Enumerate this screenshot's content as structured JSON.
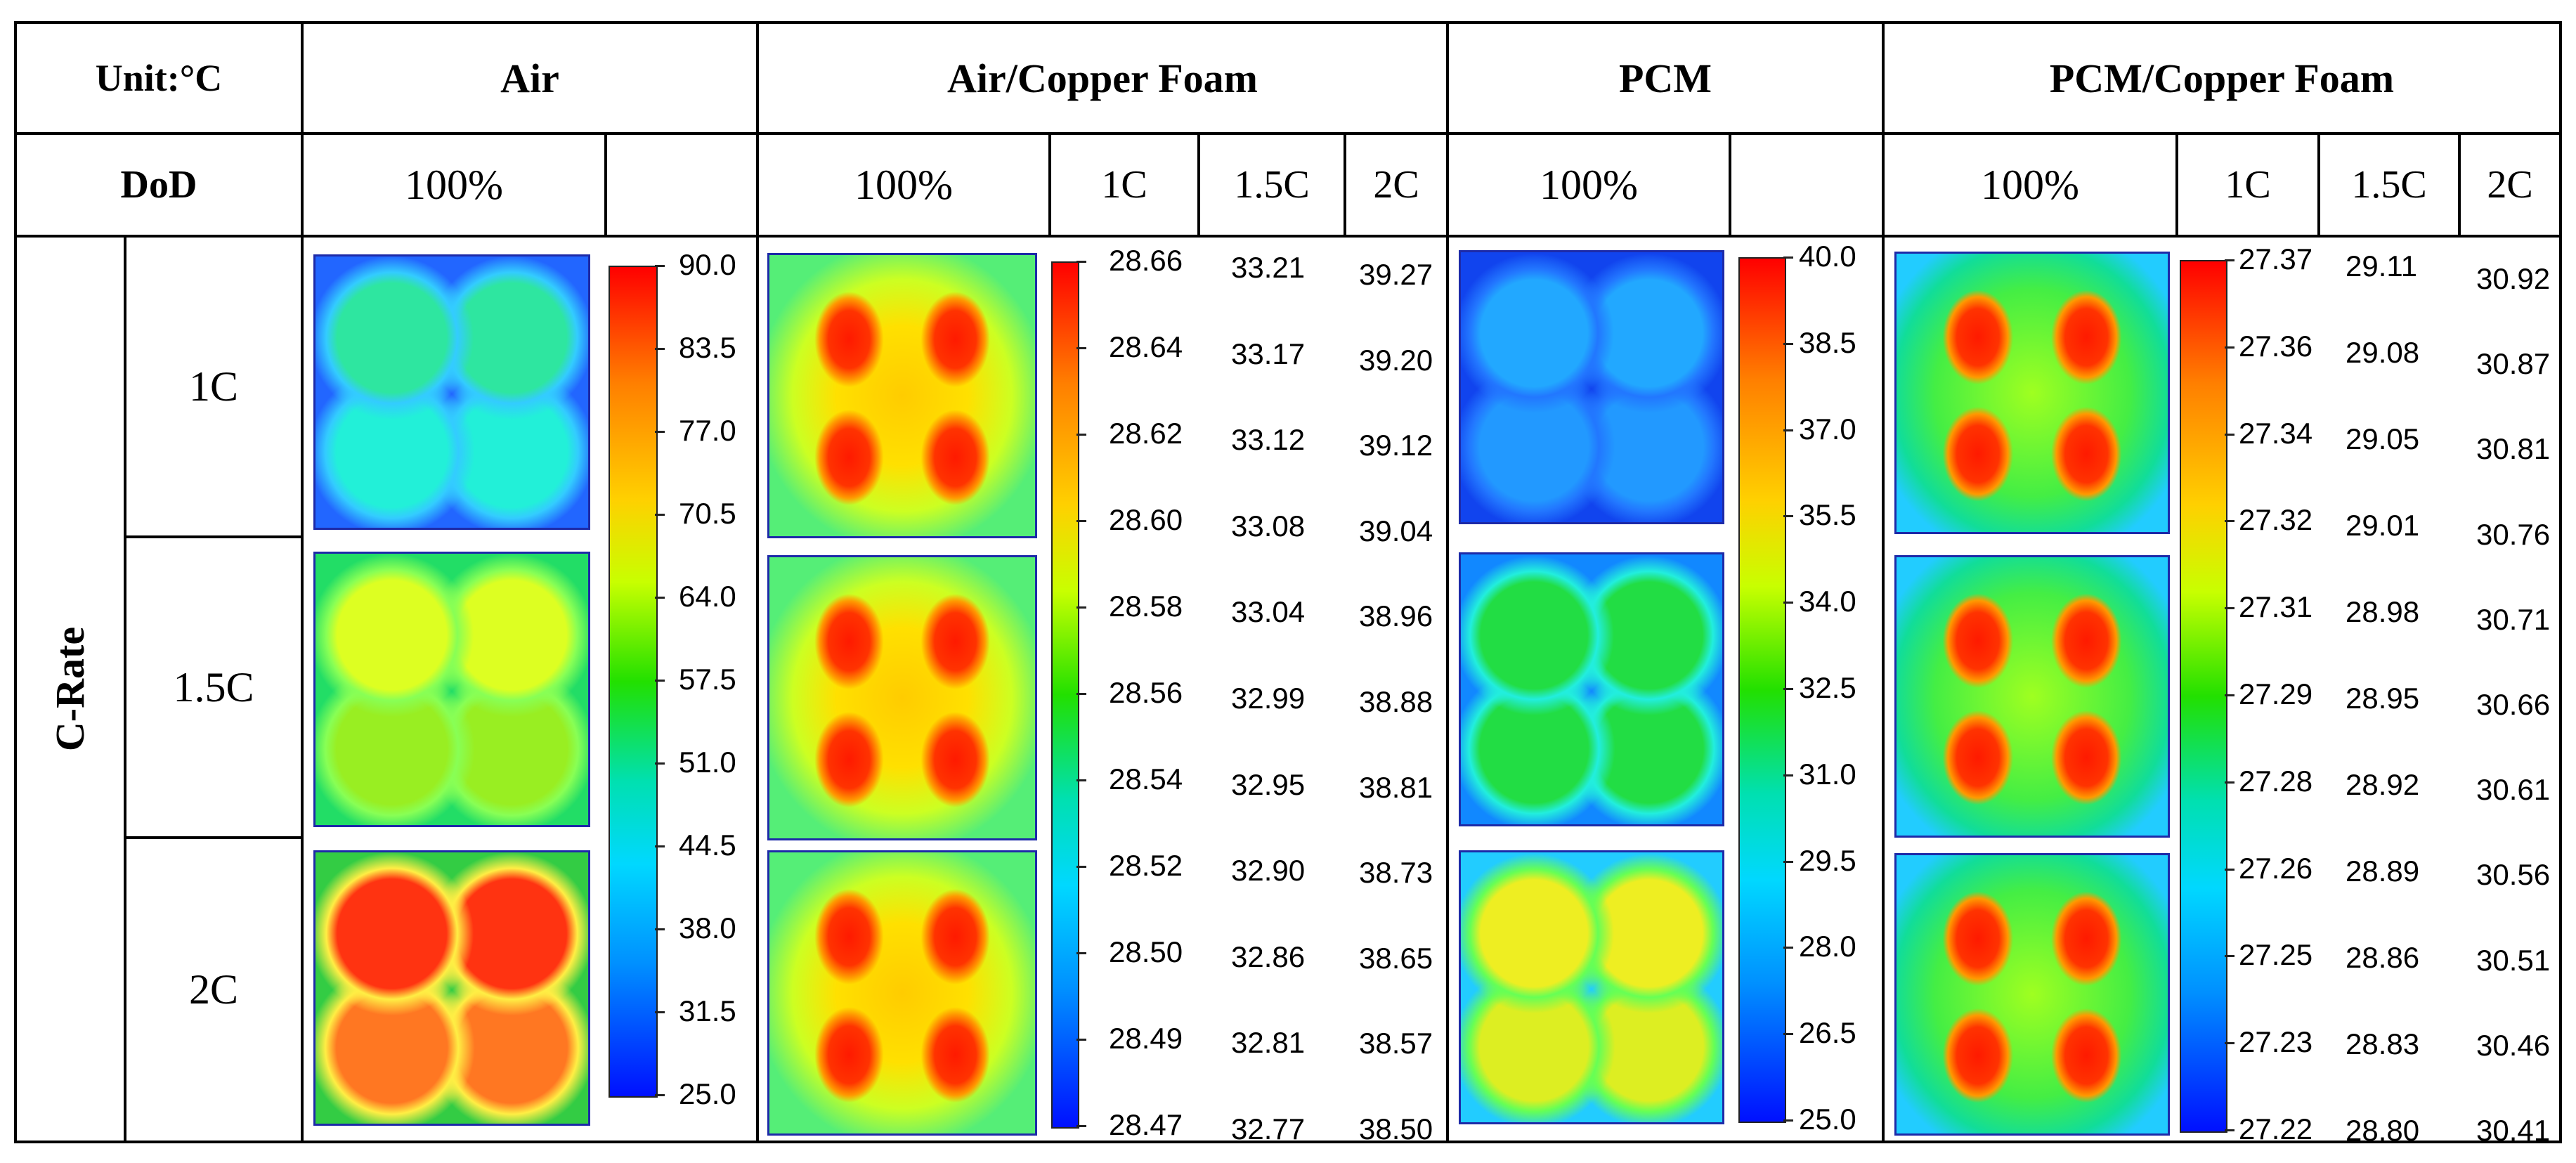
{
  "header": {
    "unit": "Unit:°C",
    "dod": "DoD",
    "c_rate": "C-Rate",
    "groups": [
      "Air",
      "Air/Copper Foam",
      "PCM",
      "PCM/Copper Foam"
    ],
    "dod_100": "100%",
    "sub_cols": [
      "1C",
      "1.5C",
      "2C"
    ]
  },
  "rows": [
    "1C",
    "1.5C",
    "2C"
  ],
  "colors": {
    "cold": "#0010ff",
    "hot": "#ff0000",
    "border": "#000000"
  },
  "air": {
    "scale": [
      "90.0",
      "83.5",
      "77.0",
      "70.5",
      "64.0",
      "57.5",
      "51.0",
      "44.5",
      "38.0",
      "31.5",
      "25.0"
    ],
    "maps": [
      {
        "label": "air 1C",
        "bg": "#2266ff",
        "top": "#2ee6a0",
        "bot": "#22f0d8",
        "halo": "#33ccff"
      },
      {
        "label": "air 1.5C",
        "bg": "#22dd66",
        "top": "#ddff22",
        "bot": "#99ee22",
        "halo": "#88ff55"
      },
      {
        "label": "air 2C",
        "bg": "#33cc44",
        "top": "#ff3311",
        "bot": "#ff7722",
        "halo": "#ffee44"
      }
    ]
  },
  "air_copper": {
    "scale_1c": [
      "28.66",
      "28.64",
      "28.62",
      "28.60",
      "28.58",
      "28.56",
      "28.54",
      "28.52",
      "28.50",
      "28.49",
      "28.47"
    ],
    "scale_15c": [
      "33.21",
      "33.17",
      "33.12",
      "33.08",
      "33.04",
      "32.99",
      "32.95",
      "32.90",
      "32.86",
      "32.81",
      "32.77"
    ],
    "scale_2c": [
      "39.27",
      "39.20",
      "39.12",
      "39.04",
      "38.96",
      "38.88",
      "38.81",
      "38.73",
      "38.65",
      "38.57",
      "38.50"
    ]
  },
  "pcm": {
    "scale": [
      "40.0",
      "38.5",
      "37.0",
      "35.5",
      "34.0",
      "32.5",
      "31.0",
      "29.5",
      "28.0",
      "26.5",
      "25.0"
    ],
    "maps": [
      {
        "label": "pcm 1C",
        "bg": "#1144ee",
        "top": "#22a8ff",
        "bot": "#2299ff",
        "halo": "#2277ff"
      },
      {
        "label": "pcm 1.5C",
        "bg": "#1188ff",
        "top": "#22dd44",
        "bot": "#22dd44",
        "halo": "#22eedd"
      },
      {
        "label": "pcm 2C",
        "bg": "#22ccff",
        "top": "#eeee22",
        "bot": "#ddee22",
        "halo": "#66ff55"
      }
    ]
  },
  "pcm_copper": {
    "scale_1c": [
      "27.37",
      "27.36",
      "27.34",
      "27.32",
      "27.31",
      "27.29",
      "27.28",
      "27.26",
      "27.25",
      "27.23",
      "27.22"
    ],
    "scale_15c": [
      "29.11",
      "29.08",
      "29.05",
      "29.01",
      "28.98",
      "28.95",
      "28.92",
      "28.89",
      "28.86",
      "28.83",
      "28.80"
    ],
    "scale_2c": [
      "30.92",
      "30.87",
      "30.81",
      "30.76",
      "30.71",
      "30.66",
      "30.61",
      "30.56",
      "30.51",
      "30.46",
      "30.41"
    ]
  }
}
